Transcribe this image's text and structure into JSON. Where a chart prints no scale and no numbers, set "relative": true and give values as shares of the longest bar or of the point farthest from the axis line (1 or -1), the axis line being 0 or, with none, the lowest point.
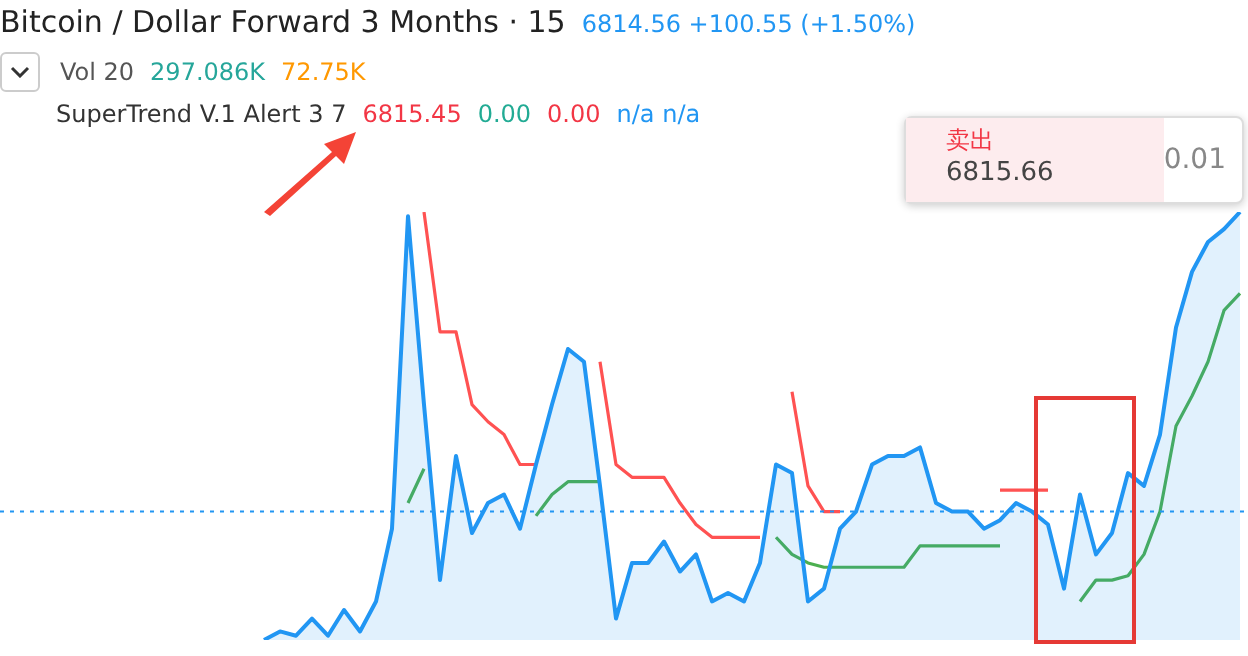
{
  "chart_data": {
    "type": "line",
    "relative": true,
    "title": "Bitcoin / Dollar Forward 3 Months · 15",
    "annotations": [
      "6814.56 +100.55 (+1.50%)",
      "Vol 20",
      "297.086K",
      "72.75K",
      "SuperTrend V.1 Alert 3 7",
      "6815.45",
      "0.00",
      "0.00",
      "n/a n/a",
      "卖出",
      "6815.66",
      "0.01"
    ],
    "categories": [
      null,
      null,
      null,
      null,
      null,
      null,
      null,
      null,
      null,
      null,
      null,
      null,
      null,
      null,
      null,
      null,
      null,
      null,
      null,
      null,
      null,
      null,
      null,
      null,
      null,
      null,
      null,
      null,
      null,
      null,
      null,
      null,
      null,
      null,
      null,
      null,
      null,
      null,
      null,
      null,
      null,
      null,
      null,
      null,
      null,
      null,
      null,
      null,
      null,
      null,
      null,
      null,
      null,
      null,
      null,
      null,
      null,
      null,
      null,
      null,
      null,
      null,
      null,
      null,
      null,
      null,
      null,
      null,
      null,
      null,
      null,
      null,
      null,
      null,
      null,
      null,
      null,
      null
    ],
    "series": [
      {
        "type": "area",
        "color": "#2196f3",
        "values": [
          null,
          null,
          null,
          null,
          null,
          null,
          null,
          null,
          null,
          null,
          null,
          null,
          null,
          null,
          null,
          null,
          0,
          0.02,
          0.01,
          0.05,
          0.01,
          0.07,
          0.02,
          0.09,
          0.26,
          0.99,
          0.55,
          0.14,
          0.43,
          0.25,
          0.32,
          0.34,
          0.26,
          0.41,
          0.55,
          0.68,
          0.65,
          0.36,
          0.05,
          0.18,
          0.18,
          0.23,
          0.16,
          0.2,
          0.09,
          0.11,
          0.09,
          0.18,
          0.41,
          0.39,
          0.09,
          0.12,
          0.26,
          0.3,
          0.41,
          0.43,
          0.43,
          0.45,
          0.32,
          0.3,
          0.3,
          0.26,
          0.28,
          0.32,
          0.3,
          0.27,
          0.12,
          0.34,
          0.2,
          0.25,
          0.39,
          0.36,
          0.48,
          0.73,
          0.86,
          0.93,
          0.96,
          1
        ]
      },
      {
        "type": "line",
        "color": "#ff5252",
        "values": [
          null,
          null,
          null,
          null,
          null,
          null,
          null,
          null,
          null,
          null,
          null,
          null,
          null,
          null,
          null,
          null,
          null,
          null,
          null,
          null,
          null,
          null,
          null,
          null,
          null,
          null,
          1,
          0.72,
          0.72,
          0.55,
          0.51,
          0.48,
          0.41,
          0.41,
          null,
          null,
          null,
          0.65,
          0.41,
          0.38,
          0.38,
          0.38,
          0.32,
          0.27,
          0.24,
          0.24,
          0.24,
          0.24,
          null,
          0.58,
          0.36,
          0.3,
          0.3,
          null,
          null,
          null,
          null,
          null,
          null,
          null,
          null,
          null,
          0.35,
          0.35,
          0.35,
          0.35,
          null,
          null,
          null,
          null,
          null,
          null,
          null,
          null,
          null,
          null,
          null,
          null
        ]
      },
      {
        "type": "line",
        "color": "#4caf50",
        "values": [
          null,
          null,
          null,
          null,
          null,
          null,
          null,
          null,
          null,
          null,
          null,
          null,
          null,
          null,
          null,
          null,
          null,
          null,
          null,
          null,
          null,
          null,
          null,
          null,
          null,
          0.32,
          0.4,
          null,
          null,
          null,
          null,
          null,
          null,
          0.29,
          0.34,
          0.37,
          0.37,
          0.37,
          null,
          null,
          null,
          null,
          null,
          null,
          null,
          null,
          null,
          null,
          0.24,
          0.2,
          0.18,
          0.17,
          0.17,
          0.17,
          0.17,
          0.17,
          0.17,
          0.22,
          0.22,
          0.22,
          0.22,
          0.22,
          0.22,
          null,
          null,
          null,
          null,
          0.09,
          0.14,
          0.14,
          0.15,
          0.2,
          0.3,
          0.5,
          0.57,
          0.65,
          0.77,
          0.81
        ]
      }
    ],
    "ref_lines": [
      {
        "axis": "y",
        "value": 0.3,
        "color": "#2196f3",
        "line_style": "dotted"
      }
    ]
  }
}
